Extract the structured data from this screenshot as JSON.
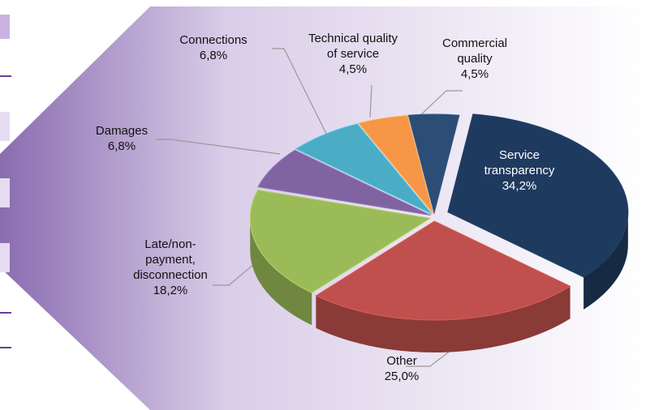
{
  "chart_data": {
    "type": "pie",
    "categories": [
      "Service transparency",
      "Other",
      "Late/non-payment, disconnection",
      "Damages",
      "Connections",
      "Technical quality of service",
      "Commercial quality"
    ],
    "values": [
      34.2,
      25.0,
      18.2,
      6.8,
      6.8,
      4.5,
      4.5
    ],
    "value_labels": [
      "34,2%",
      "25,0%",
      "18,2%",
      "6,8%",
      "6,8%",
      "4,5%",
      "4,5%"
    ],
    "colors": [
      "#1f3a5f",
      "#c0504d",
      "#9bbb59",
      "#8064a2",
      "#4bacc6",
      "#f79646",
      "#2c4d75"
    ]
  }
}
